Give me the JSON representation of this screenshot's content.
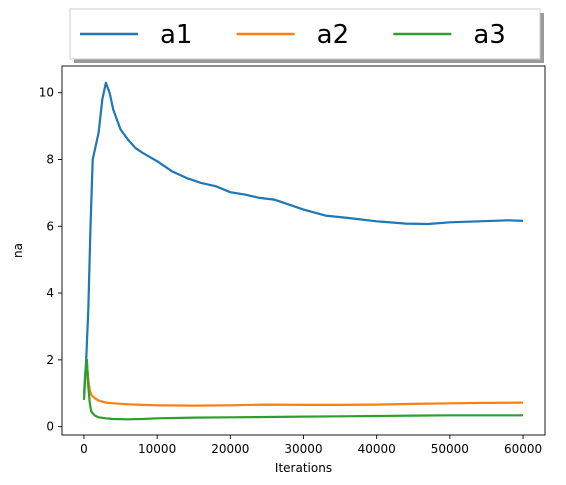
{
  "chart_data": {
    "type": "line",
    "title": "",
    "xlabel": "Iterations",
    "ylabel": "na",
    "xlim": [
      -3000,
      63000
    ],
    "ylim": [
      -0.25,
      10.8
    ],
    "x_ticks": [
      0,
      10000,
      20000,
      30000,
      40000,
      50000,
      60000
    ],
    "y_ticks": [
      0,
      2,
      4,
      6,
      8,
      10
    ],
    "grid": false,
    "legend": {
      "position": "top-center-outside",
      "columns": 3
    },
    "series": [
      {
        "name": "a1",
        "color": "#1f77b4",
        "x": [
          0,
          300,
          600,
          900,
          1200,
          1500,
          2000,
          2500,
          3000,
          3500,
          4000,
          5000,
          6000,
          7000,
          8000,
          10000,
          12000,
          14000,
          16000,
          18000,
          20000,
          22000,
          24000,
          26000,
          28000,
          30000,
          33000,
          36000,
          40000,
          44000,
          47000,
          50000,
          54000,
          58000,
          60000
        ],
        "values": [
          1.0,
          2.0,
          3.5,
          6.0,
          8.0,
          8.3,
          8.8,
          9.8,
          10.3,
          10.0,
          9.5,
          8.9,
          8.6,
          8.35,
          8.2,
          7.95,
          7.65,
          7.45,
          7.3,
          7.2,
          7.02,
          6.95,
          6.85,
          6.8,
          6.65,
          6.5,
          6.32,
          6.25,
          6.15,
          6.08,
          6.07,
          6.12,
          6.15,
          6.18,
          6.16
        ]
      },
      {
        "name": "a2",
        "color": "#ff7f0e",
        "x": [
          0,
          200,
          400,
          600,
          800,
          1000,
          1500,
          2000,
          3000,
          4000,
          6000,
          8000,
          10000,
          15000,
          20000,
          25000,
          30000,
          35000,
          40000,
          45000,
          50000,
          55000,
          60000
        ],
        "values": [
          0.9,
          1.5,
          1.9,
          1.4,
          1.1,
          0.95,
          0.85,
          0.78,
          0.72,
          0.7,
          0.67,
          0.65,
          0.64,
          0.63,
          0.64,
          0.66,
          0.65,
          0.65,
          0.66,
          0.68,
          0.7,
          0.71,
          0.72
        ]
      },
      {
        "name": "a3",
        "color": "#2ca02c",
        "x": [
          0,
          200,
          400,
          600,
          800,
          1000,
          1500,
          2000,
          3000,
          4000,
          6000,
          8000,
          10000,
          15000,
          20000,
          25000,
          30000,
          35000,
          40000,
          45000,
          50000,
          55000,
          60000
        ],
        "values": [
          0.8,
          1.6,
          2.0,
          1.2,
          0.7,
          0.45,
          0.33,
          0.28,
          0.25,
          0.23,
          0.22,
          0.23,
          0.25,
          0.27,
          0.28,
          0.29,
          0.3,
          0.31,
          0.32,
          0.33,
          0.34,
          0.34,
          0.34
        ]
      }
    ]
  }
}
